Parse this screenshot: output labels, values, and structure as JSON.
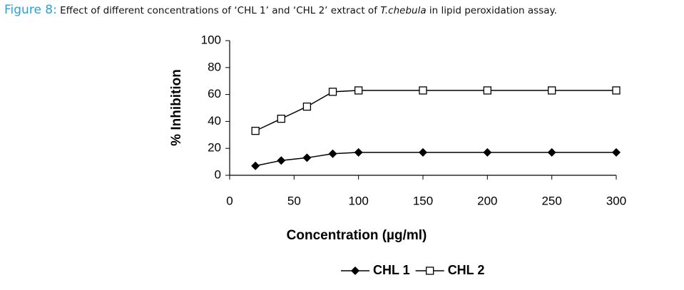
{
  "chart_data": {
    "type": "line",
    "caption_label": "Figure 8:",
    "caption_text": "Effect of different concentrations of ‘CHL 1’ and ‘CHL 2’ extract of",
    "caption_italic": "T.chebula",
    "caption_end": "in lipid peroxidation assay.",
    "x_label": "Concentration (µg/ml)",
    "y_label": "% Inhibition",
    "x": [
      20,
      40,
      60,
      80,
      100,
      150,
      200,
      250,
      300
    ],
    "series": [
      {
        "name": "CHL 1",
        "color": "#000000",
        "marker": "diamond",
        "values": [
          7,
          11,
          13,
          16,
          17,
          17,
          17,
          17,
          17
        ]
      },
      {
        "name": "CHL 2",
        "color": "#000000",
        "marker": "square",
        "values": [
          33,
          42,
          51,
          62,
          63,
          63,
          63,
          63,
          63
        ]
      }
    ],
    "xlim": [
      0,
      300
    ],
    "xticks": [
      0,
      50,
      100,
      150,
      200,
      250,
      300
    ],
    "ylim": [
      0,
      100
    ],
    "yticks": [
      0,
      20,
      40,
      60,
      80,
      100
    ],
    "grid": false,
    "legend": "bottom"
  }
}
